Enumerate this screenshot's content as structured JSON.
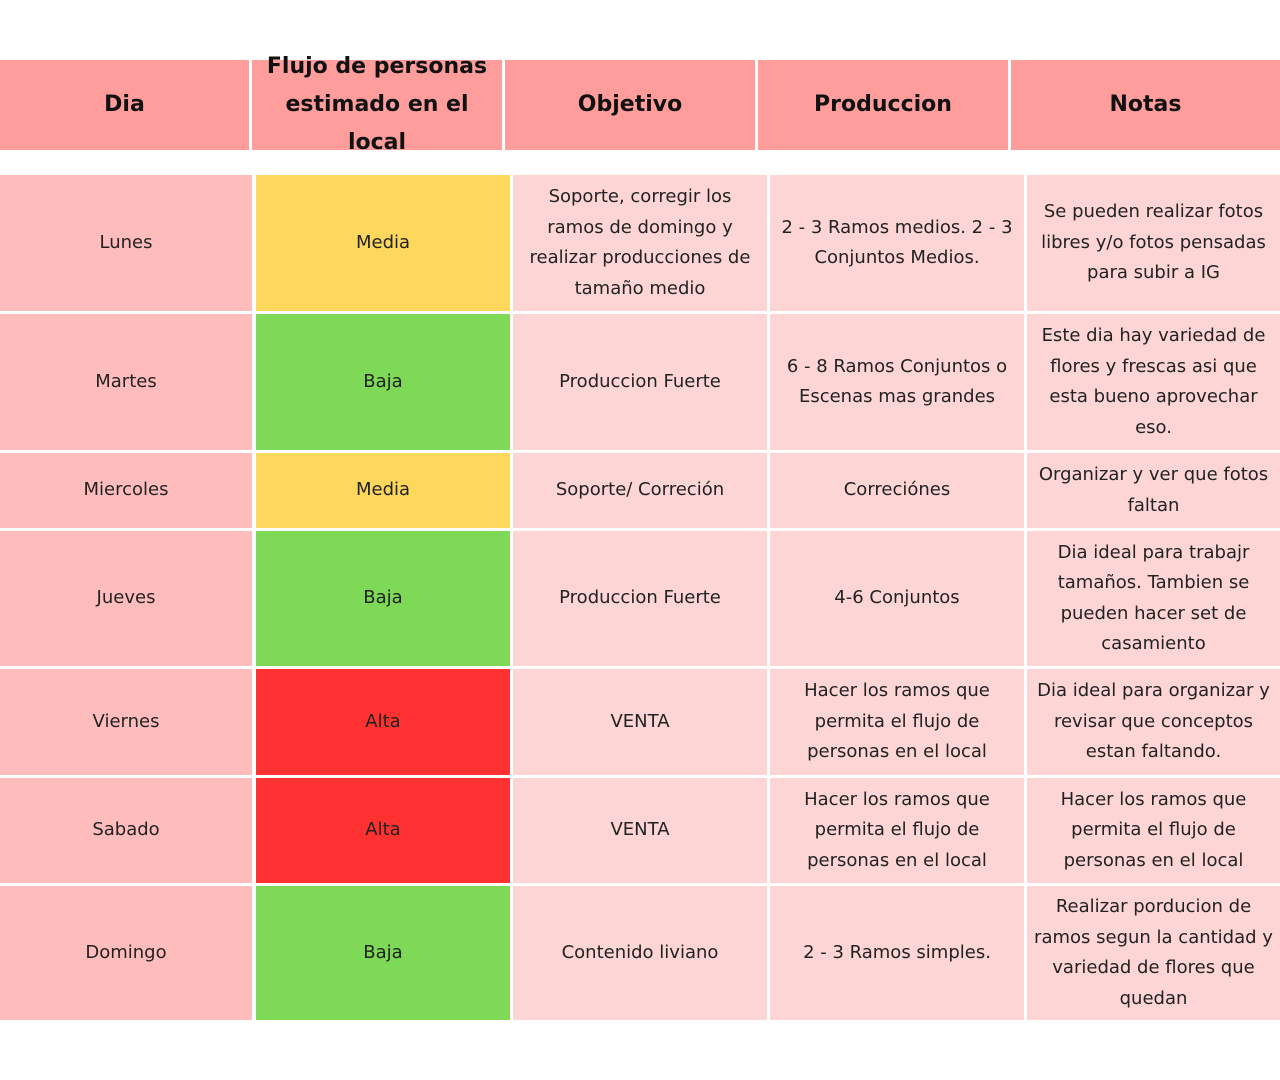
{
  "header": [
    "Dia",
    "Flujo de personas estimado en el local",
    "Objetivo",
    "Produccion",
    "Notas"
  ],
  "rows": [
    {
      "dia": "Lunes",
      "flujo": "Media",
      "color": "#fdd85c",
      "objetivo": "Soporte, corregir los ramos de domingo y realizar producciones de tamaño medio",
      "produccion": "2 - 3 Ramos medios. 2 - 3 Conjuntos Medios.",
      "notas": "Se pueden realizar fotos libres y/o fotos pensadas para subir a IG"
    },
    {
      "dia": "Martes",
      "flujo": "Baja",
      "color": "#7ed957",
      "objetivo": "Produccion Fuerte",
      "produccion": "6 - 8 Ramos Conjuntos o Escenas mas grandes",
      "notas": "Este dia hay variedad de flores y frescas asi que esta bueno aprovechar eso."
    },
    {
      "dia": "Miercoles",
      "flujo": "Media",
      "color": "#fdd85c",
      "objetivo": "Soporte/ Correción",
      "produccion": "Correciónes",
      "notas": "Organizar y ver que fotos faltan"
    },
    {
      "dia": "Jueves",
      "flujo": "Baja",
      "color": "#7ed957",
      "objetivo": "Produccion Fuerte",
      "produccion": "4-6 Conjuntos",
      "notas": "Dia ideal para trabajr tamaños. Tambien se pueden hacer set de casamiento"
    },
    {
      "dia": "Viernes",
      "flujo": "Alta",
      "color": "#ff3131",
      "objetivo": "VENTA",
      "produccion": "Hacer los ramos que permita el flujo de personas en el local",
      "notas": "Dia ideal para organizar y revisar que conceptos estan faltando."
    },
    {
      "dia": "Sabado",
      "flujo": "Alta",
      "color": "#ff3131",
      "objetivo": "VENTA",
      "produccion": "Hacer los ramos que permita el flujo de personas en el local",
      "notas": "Hacer los ramos que permita el flujo de personas en el local"
    },
    {
      "dia": "Domingo",
      "flujo": "Baja",
      "color": "#7ed957",
      "objetivo": "Contenido liviano",
      "produccion": "2 - 3 Ramos simples.",
      "notas": "Realizar porducion de ramos segun la cantidad y variedad de flores que quedan"
    }
  ]
}
